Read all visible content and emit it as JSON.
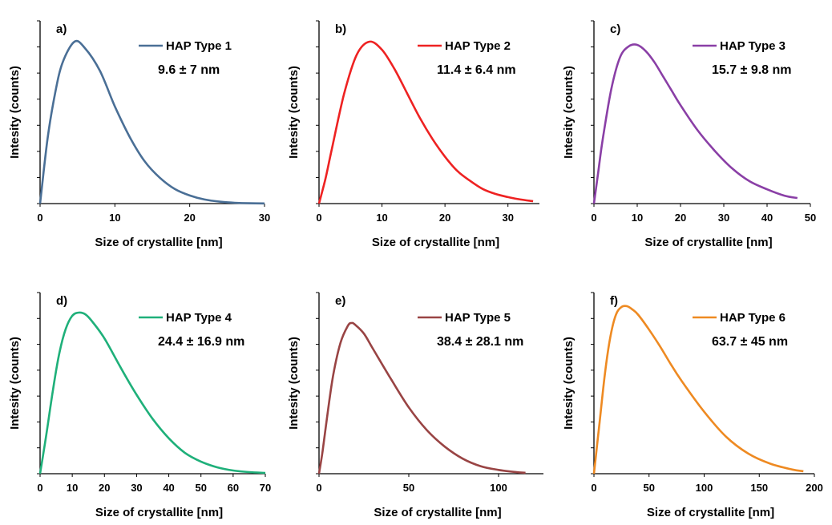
{
  "chart_data": [
    {
      "type": "line",
      "panel_label": "a)",
      "series": [
        {
          "name": "HAP Type 1",
          "color": "#4a6f96",
          "x": [
            0,
            1,
            2,
            3,
            4.6,
            6,
            8,
            10,
            12,
            14,
            16,
            18,
            20,
            22,
            24,
            26,
            28,
            30
          ],
          "y": [
            0,
            0.4,
            0.68,
            0.87,
            1.0,
            0.96,
            0.82,
            0.6,
            0.41,
            0.26,
            0.16,
            0.09,
            0.05,
            0.025,
            0.012,
            0.005,
            0.002,
            0.001
          ]
        }
      ],
      "annotation": "9.6 ± 7 nm",
      "xlabel": "Size of crystallite [nm]",
      "ylabel": "Intesity (counts)",
      "xticks": [
        "0",
        "10",
        "20",
        "30"
      ],
      "xlim": [
        0,
        30
      ],
      "ylim": [
        0,
        1
      ]
    },
    {
      "type": "line",
      "panel_label": "b)",
      "series": [
        {
          "name": "HAP Type 2",
          "color": "#ee2222",
          "x": [
            0,
            1,
            2,
            4,
            6,
            8,
            10,
            12,
            14,
            16,
            18,
            20,
            22,
            24,
            26,
            28,
            30,
            32,
            34
          ],
          "y": [
            0,
            0.15,
            0.33,
            0.68,
            0.92,
            1.0,
            0.95,
            0.83,
            0.68,
            0.53,
            0.4,
            0.29,
            0.2,
            0.14,
            0.09,
            0.06,
            0.04,
            0.025,
            0.015
          ]
        }
      ],
      "annotation": "11.4 ± 6.4 nm",
      "xlabel": "Size of crystallite [nm]",
      "ylabel": "Intesity (counts)",
      "xticks": [
        "0",
        "10",
        "20",
        "30"
      ],
      "xlim": [
        0,
        35
      ],
      "ylim": [
        0,
        1
      ]
    },
    {
      "type": "line",
      "panel_label": "c)",
      "series": [
        {
          "name": "HAP Type 3",
          "color": "#8a3fa6",
          "x": [
            0,
            1,
            2,
            4,
            6,
            8,
            10,
            12,
            14,
            16,
            18,
            20,
            24,
            28,
            32,
            36,
            40,
            44,
            47
          ],
          "y": [
            0,
            0.2,
            0.4,
            0.72,
            0.92,
            0.99,
            1.0,
            0.96,
            0.89,
            0.8,
            0.71,
            0.62,
            0.46,
            0.33,
            0.22,
            0.14,
            0.09,
            0.05,
            0.035
          ]
        }
      ],
      "annotation": "15.7 ± 9.8 nm",
      "xlabel": "Size of crystallite [nm]",
      "ylabel": "Intesity (counts)",
      "xticks": [
        "0",
        "10",
        "20",
        "30",
        "40",
        "50"
      ],
      "xlim": [
        0,
        50
      ],
      "ylim": [
        0,
        1
      ]
    },
    {
      "type": "line",
      "panel_label": "d)",
      "series": [
        {
          "name": "HAP Type 4",
          "color": "#1fb07a",
          "x": [
            0,
            2,
            4,
            6,
            8,
            10,
            12,
            14,
            16,
            20,
            25,
            30,
            35,
            40,
            45,
            50,
            55,
            60,
            65,
            70
          ],
          "y": [
            0,
            0.25,
            0.52,
            0.75,
            0.9,
            0.98,
            1.0,
            0.99,
            0.95,
            0.84,
            0.66,
            0.49,
            0.34,
            0.22,
            0.13,
            0.075,
            0.04,
            0.02,
            0.01,
            0.005
          ]
        }
      ],
      "annotation": "24.4 ± 16.9 nm",
      "xlabel": "Size of crystallite [nm]",
      "ylabel": "Intesity (counts)",
      "xticks": [
        "0",
        "10",
        "20",
        "30",
        "40",
        "50",
        "60",
        "70"
      ],
      "xlim": [
        0,
        70
      ],
      "ylim": [
        0,
        1
      ]
    },
    {
      "type": "line",
      "panel_label": "e)",
      "series": [
        {
          "name": "HAP Type 5",
          "color": "#994444",
          "x": [
            0,
            2,
            5,
            8,
            12,
            16,
            18,
            20,
            25,
            30,
            40,
            50,
            60,
            70,
            80,
            90,
            100,
            110,
            115
          ],
          "y": [
            0,
            0.15,
            0.42,
            0.66,
            0.87,
            0.98,
            1.0,
            0.99,
            0.93,
            0.83,
            0.63,
            0.44,
            0.29,
            0.18,
            0.1,
            0.05,
            0.025,
            0.01,
            0.006
          ]
        }
      ],
      "annotation": "38.4 ± 28.1 nm",
      "xlabel": "Size of crystallite [nm]",
      "ylabel": "Intesity (counts)",
      "xticks": [
        "0",
        "50",
        "100"
      ],
      "xlim": [
        0,
        125
      ],
      "ylim": [
        0,
        1
      ]
    },
    {
      "type": "line",
      "panel_label": "f)",
      "series": [
        {
          "name": "HAP Type 6",
          "color": "#ee8a22",
          "x": [
            0,
            5,
            10,
            15,
            20,
            25,
            30,
            35,
            40,
            50,
            60,
            70,
            80,
            100,
            120,
            140,
            160,
            180,
            190
          ],
          "y": [
            0,
            0.3,
            0.6,
            0.82,
            0.95,
            0.995,
            1.0,
            0.98,
            0.95,
            0.86,
            0.76,
            0.65,
            0.55,
            0.37,
            0.22,
            0.12,
            0.06,
            0.025,
            0.015
          ]
        }
      ],
      "annotation": "63.7 ± 45 nm",
      "xlabel": "Size of crystallite [nm]",
      "ylabel": "Intesity (counts)",
      "xticks": [
        "0",
        "50",
        "100",
        "150",
        "200"
      ],
      "xlim": [
        0,
        200
      ],
      "ylim": [
        0,
        1
      ]
    }
  ]
}
